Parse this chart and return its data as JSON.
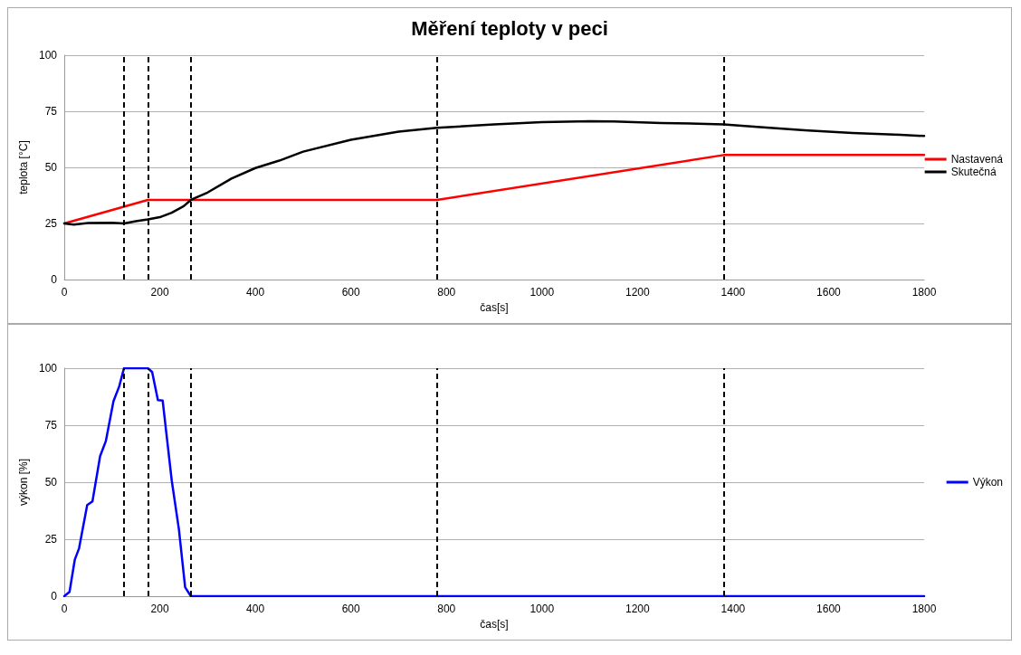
{
  "chart_data": [
    {
      "type": "line",
      "title": "Měření teploty v peci",
      "xlabel": "čas[s]",
      "ylabel": "teplota [°C]",
      "xlim": [
        0,
        1800
      ],
      "xticks": [
        0,
        200,
        400,
        600,
        800,
        1000,
        1200,
        1400,
        1600,
        1800
      ],
      "ylim": [
        0,
        100
      ],
      "yticks": [
        0,
        25,
        50,
        75,
        100
      ],
      "grid": "y",
      "legend": "right",
      "marker": "none",
      "line_style": "solid",
      "series": [
        {
          "name": "Nastavená",
          "color": "#ff0000",
          "x": [
            0,
            175,
            780,
            1380,
            1800
          ],
          "values": [
            25,
            35.5,
            35.5,
            55.5,
            55.5
          ]
        },
        {
          "name": "Skutečná",
          "color": "#000000",
          "x": [
            0,
            20,
            50,
            100,
            125,
            150,
            175,
            200,
            225,
            250,
            265,
            300,
            350,
            400,
            450,
            500,
            600,
            700,
            780,
            900,
            1000,
            1100,
            1150,
            1250,
            1380,
            1450,
            1550,
            1650,
            1750,
            1800
          ],
          "values": [
            25,
            24.5,
            25.2,
            25.3,
            25,
            26,
            26.8,
            27.8,
            29.8,
            32.7,
            35.5,
            38.8,
            45,
            49.7,
            53,
            57,
            62.3,
            65.9,
            67.6,
            69.2,
            70.2,
            70.6,
            70.5,
            69.8,
            69.2,
            68,
            66.5,
            65.3,
            64.5,
            64
          ]
        }
      ],
      "ref_lines": [
        {
          "axis": "x",
          "value": 125,
          "color": "#000000",
          "line_style": "dashed"
        },
        {
          "axis": "x",
          "value": 175,
          "color": "#000000",
          "line_style": "dashed"
        },
        {
          "axis": "x",
          "value": 265,
          "color": "#000000",
          "line_style": "dashed"
        },
        {
          "axis": "x",
          "value": 780,
          "color": "#000000",
          "line_style": "dashed"
        },
        {
          "axis": "x",
          "value": 1380,
          "color": "#000000",
          "line_style": "dashed"
        }
      ]
    },
    {
      "type": "line",
      "xlabel": "čas[s]",
      "ylabel": "výkon [%]",
      "xlim": [
        0,
        1800
      ],
      "xticks": [
        0,
        200,
        400,
        600,
        800,
        1000,
        1200,
        1400,
        1600,
        1800
      ],
      "ylim": [
        0,
        100
      ],
      "yticks": [
        0,
        25,
        50,
        75,
        100
      ],
      "grid": "y",
      "legend": "right",
      "marker": "none",
      "line_style": "solid",
      "series": [
        {
          "name": "Výkon",
          "color": "#0000ff",
          "x": [
            0,
            11,
            22,
            31,
            48,
            59,
            75,
            87,
            103,
            115,
            125,
            175,
            184,
            196,
            206,
            225,
            240,
            253,
            265,
            1800
          ],
          "values": [
            0,
            1.9,
            16,
            21,
            40,
            41.6,
            61.4,
            68,
            85.5,
            92,
            100,
            100,
            98.3,
            86,
            85.8,
            50.7,
            29.3,
            3.9,
            0,
            0
          ]
        }
      ],
      "ref_lines": [
        {
          "axis": "x",
          "value": 125,
          "color": "#000000",
          "line_style": "dashed"
        },
        {
          "axis": "x",
          "value": 175,
          "color": "#000000",
          "line_style": "dashed"
        },
        {
          "axis": "x",
          "value": 265,
          "color": "#000000",
          "line_style": "dashed"
        },
        {
          "axis": "x",
          "value": 780,
          "color": "#000000",
          "line_style": "dashed"
        },
        {
          "axis": "x",
          "value": 1380,
          "color": "#000000",
          "line_style": "dashed"
        }
      ]
    }
  ]
}
